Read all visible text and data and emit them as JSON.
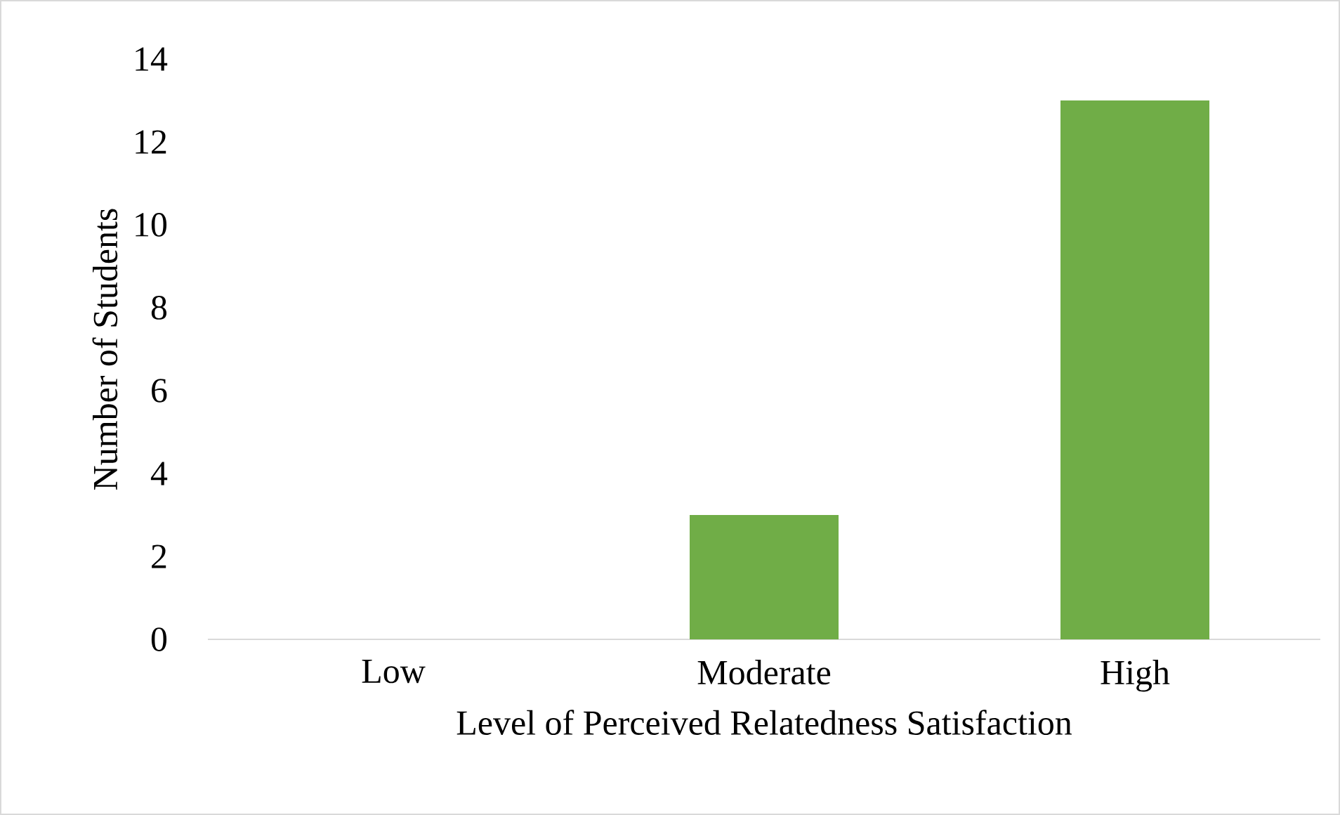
{
  "chart_data": {
    "type": "bar",
    "xlabel": "Level of Perceived Relatedness Satisfaction",
    "ylabel": "Number of Students",
    "categories": [
      "Low",
      "Moderate",
      "High"
    ],
    "values": [
      0,
      3,
      13
    ],
    "color": "#70ad47",
    "ylim": [
      0,
      14
    ],
    "yticks": [
      0,
      2,
      4,
      6,
      8,
      10,
      12,
      14
    ]
  }
}
